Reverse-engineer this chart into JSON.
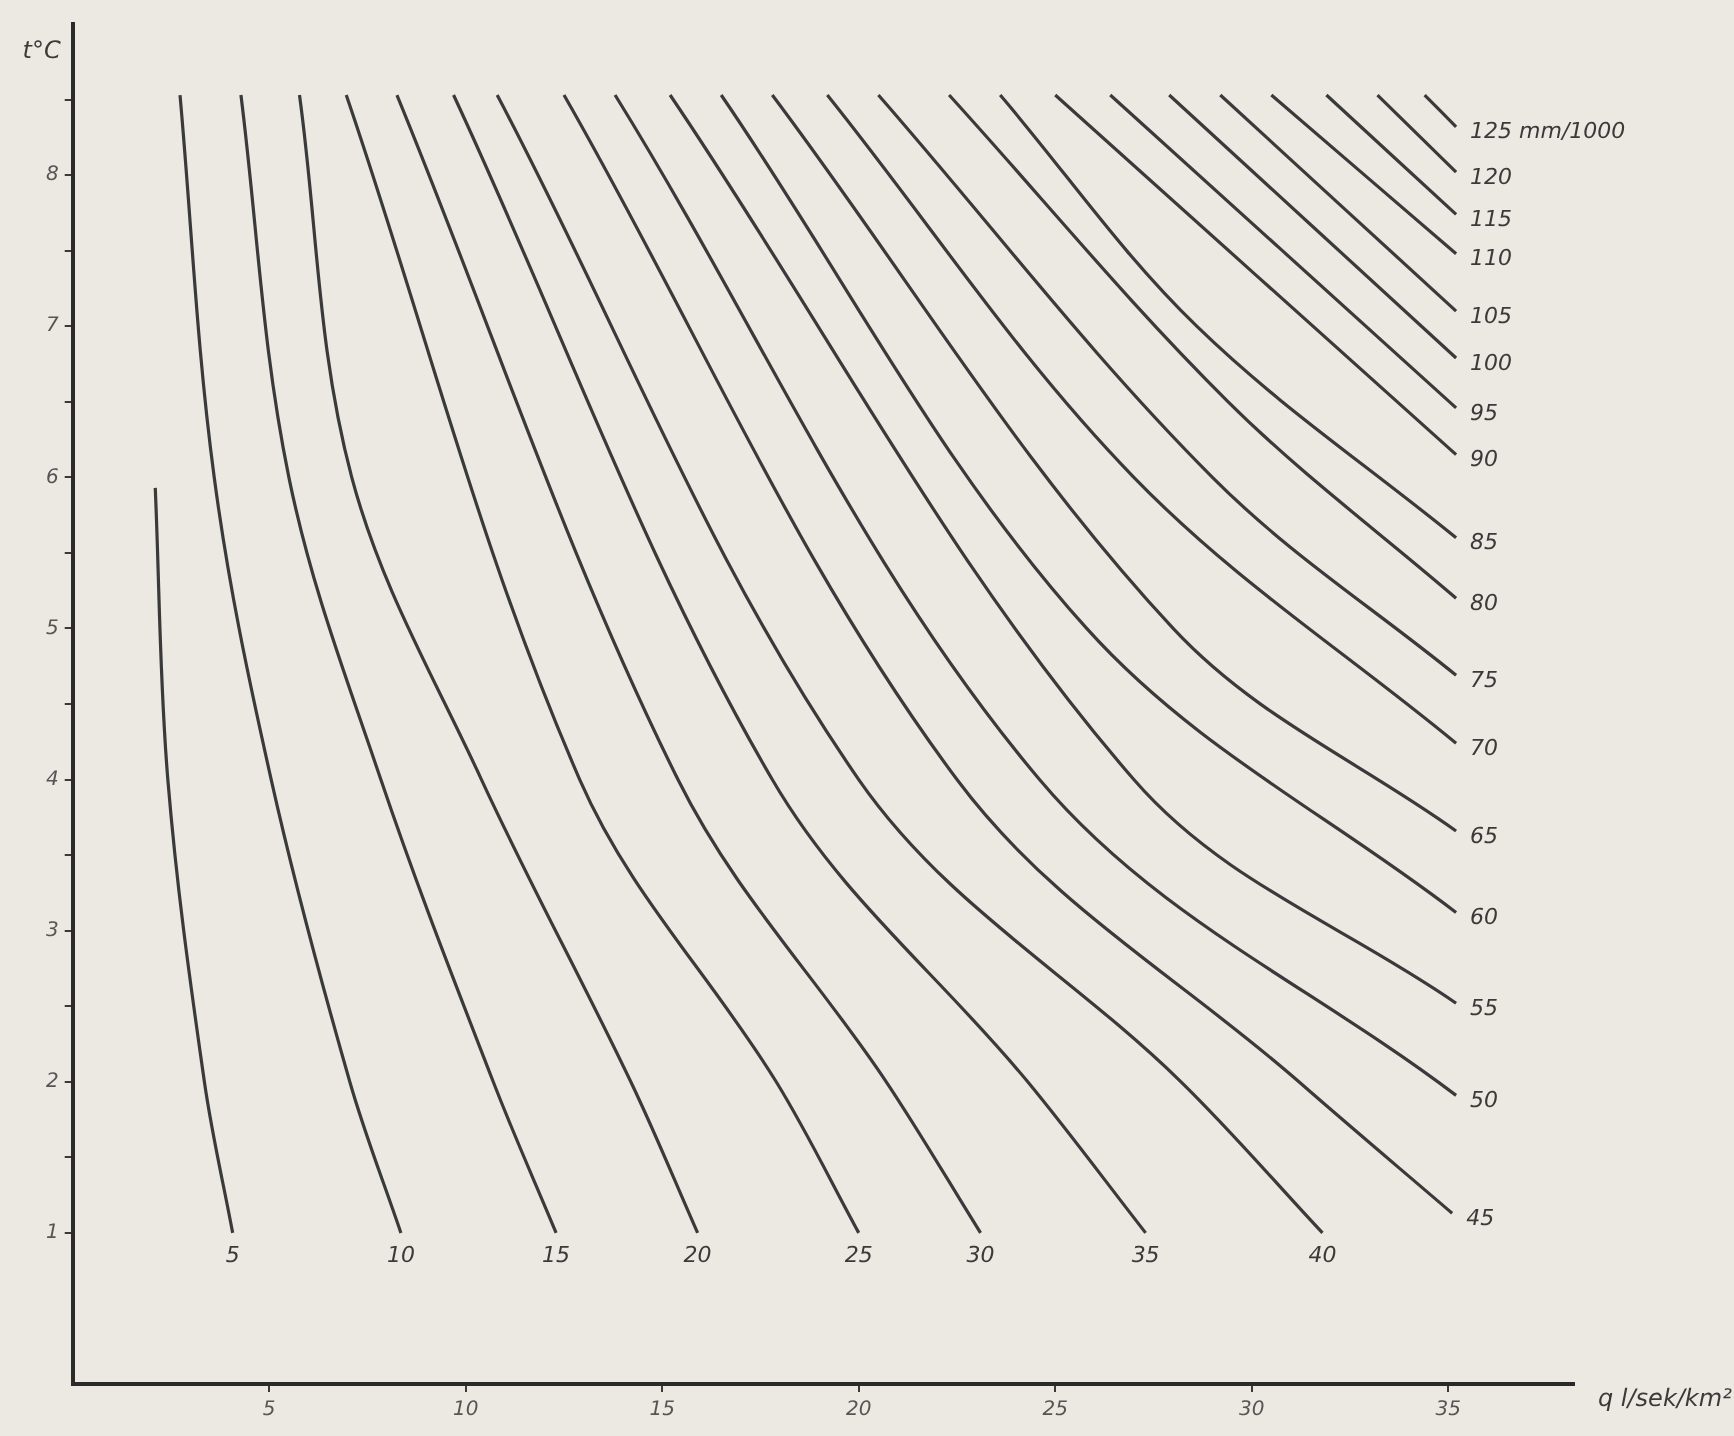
{
  "chart_data": {
    "type": "line",
    "xlabel": "q l/sek/km²",
    "ylabel": "t°C",
    "xlim": [
      0,
      38.2
    ],
    "ylim": [
      0,
      9
    ],
    "xticks": [
      5,
      10,
      15,
      20,
      25,
      30,
      35
    ],
    "yticks": [
      1,
      {
        "value": 1.5,
        "label": null
      },
      2,
      {
        "value": 2.5,
        "label": null
      },
      3,
      {
        "value": 3.5,
        "label": null
      },
      4,
      {
        "value": 4.5,
        "label": null
      },
      5,
      {
        "value": 5.5,
        "label": null
      },
      6,
      {
        "value": 6.5,
        "label": null
      },
      7,
      {
        "value": 7.5,
        "label": null
      },
      8,
      {
        "value": 8.5,
        "label": null
      }
    ],
    "grid": false,
    "legend": false,
    "marker": "none",
    "line_style": "solid",
    "series": [
      {
        "name": "5",
        "color": "#3a3a3a",
        "x": [
          2.1,
          2.42,
          3.35,
          4.07
        ],
        "values": [
          5.93,
          4,
          2,
          1
        ]
      },
      {
        "name": "10",
        "color": "#3a3a3a",
        "x": [
          2.73,
          3.6,
          5.05,
          7.05,
          8.35
        ],
        "values": [
          8.53,
          6,
          4,
          2,
          1
        ]
      },
      {
        "name": "15",
        "color": "#3a3a3a",
        "x": [
          4.28,
          5.5,
          7.84,
          10.7,
          12.3
        ],
        "values": [
          8.53,
          6,
          4,
          2,
          1
        ]
      },
      {
        "name": "20",
        "color": "#3a3a3a",
        "x": [
          5.77,
          7.1,
          10.4,
          14.2,
          15.9
        ],
        "values": [
          8.53,
          6,
          4,
          2,
          1
        ]
      },
      {
        "name": "25",
        "color": "#3a3a3a",
        "x": [
          6.96,
          12.9,
          17.9,
          20.0
        ],
        "values": [
          8.53,
          4,
          2,
          1
        ]
      },
      {
        "name": "30",
        "color": "#3a3a3a",
        "x": [
          8.25,
          15.4,
          20.7,
          23.1
        ],
        "values": [
          8.53,
          4,
          2,
          1
        ]
      },
      {
        "name": "35",
        "color": "#3a3a3a",
        "x": [
          9.69,
          17.8,
          24.3,
          27.3
        ],
        "values": [
          8.53,
          4,
          2,
          1
        ]
      },
      {
        "name": "40",
        "color": "#3a3a3a",
        "x": [
          10.8,
          20.0,
          28.2,
          31.8
        ],
        "values": [
          8.53,
          4,
          2,
          1
        ]
      },
      {
        "name": "45",
        "color": "#3a3a3a",
        "x": [
          12.5,
          22.5,
          31.2,
          35.1
        ],
        "values": [
          8.53,
          4,
          2,
          1.13
        ]
      },
      {
        "name": "50",
        "color": "#3a3a3a",
        "x": [
          13.8,
          24.6,
          35.2
        ],
        "values": [
          8.53,
          4,
          1.91
        ]
      },
      {
        "name": "55",
        "color": "#3a3a3a",
        "x": [
          15.2,
          27.0,
          35.2
        ],
        "values": [
          8.53,
          4,
          2.52
        ]
      },
      {
        "name": "60",
        "color": "#3a3a3a",
        "x": [
          16.5,
          25.8,
          35.2
        ],
        "values": [
          8.53,
          5,
          3.12
        ]
      },
      {
        "name": "65",
        "color": "#3a3a3a",
        "x": [
          17.8,
          28.0,
          35.2
        ],
        "values": [
          8.53,
          5,
          3.66
        ]
      },
      {
        "name": "70",
        "color": "#3a3a3a",
        "x": [
          19.2,
          27.0,
          35.2
        ],
        "values": [
          8.53,
          6,
          4.24
        ]
      },
      {
        "name": "75",
        "color": "#3a3a3a",
        "x": [
          20.5,
          29.0,
          35.2
        ],
        "values": [
          8.53,
          6,
          4.69
        ]
      },
      {
        "name": "80",
        "color": "#3a3a3a",
        "x": [
          22.3,
          29.4,
          35.2
        ],
        "values": [
          8.53,
          6.5,
          5.2
        ]
      },
      {
        "name": "85",
        "color": "#3a3a3a",
        "x": [
          23.6,
          28.6,
          35.2
        ],
        "values": [
          8.53,
          7,
          5.6
        ]
      },
      {
        "name": "90",
        "color": "#3a3a3a",
        "x": [
          25.0,
          35.2
        ],
        "values": [
          8.53,
          6.15
        ]
      },
      {
        "name": "95",
        "color": "#3a3a3a",
        "x": [
          26.4,
          35.2
        ],
        "values": [
          8.53,
          6.46
        ]
      },
      {
        "name": "100",
        "color": "#3a3a3a",
        "x": [
          27.9,
          35.2
        ],
        "values": [
          8.53,
          6.79
        ]
      },
      {
        "name": "105",
        "color": "#3a3a3a",
        "x": [
          29.2,
          35.2
        ],
        "values": [
          8.53,
          7.1
        ]
      },
      {
        "name": "110",
        "color": "#3a3a3a",
        "x": [
          30.5,
          35.2
        ],
        "values": [
          8.53,
          7.48
        ]
      },
      {
        "name": "115",
        "color": "#3a3a3a",
        "x": [
          31.9,
          35.2
        ],
        "values": [
          8.53,
          7.74
        ]
      },
      {
        "name": "120",
        "color": "#3a3a3a",
        "x": [
          33.2,
          35.2
        ],
        "values": [
          8.53,
          8.02
        ]
      },
      {
        "name": "125 mm/1000",
        "color": "#3a3a3a",
        "x": [
          34.4,
          35.2
        ],
        "values": [
          8.53,
          8.32
        ]
      }
    ]
  }
}
